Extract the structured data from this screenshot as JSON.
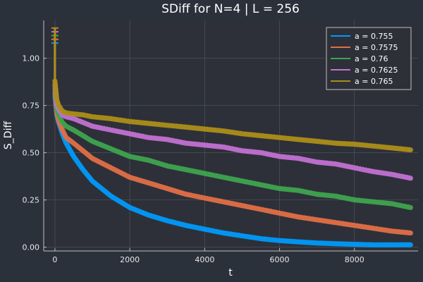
{
  "chart_data": {
    "type": "line",
    "title": "SDiff for N=4 | L = 256",
    "xlabel": "t",
    "ylabel": "S_Diff",
    "xlim": [
      -300,
      9700
    ],
    "ylim": [
      -0.02,
      1.2
    ],
    "xticks": [
      0,
      2000,
      4000,
      6000,
      8000
    ],
    "xtick_labels": [
      "0",
      "2000",
      "4000",
      "6000",
      "8000"
    ],
    "yticks": [
      0.0,
      0.25,
      0.5,
      0.75,
      1.0
    ],
    "ytick_labels": [
      "0.00",
      "0.25",
      "0.50",
      "0.75",
      "1.00"
    ],
    "grid": true,
    "legend_position": "top-right",
    "background": "#2b313b",
    "plot_background": "#2d3039",
    "x": [
      0,
      50,
      100,
      200,
      300,
      500,
      750,
      1000,
      1500,
      2000,
      2500,
      3000,
      3500,
      4000,
      4500,
      5000,
      5500,
      6000,
      6500,
      7000,
      7500,
      8000,
      8500,
      9000,
      9500
    ],
    "series": [
      {
        "name": "a = 0.755",
        "color": "#009af9",
        "values": [
          0.8,
          0.7,
          0.66,
          0.6,
          0.55,
          0.48,
          0.41,
          0.35,
          0.27,
          0.21,
          0.17,
          0.14,
          0.115,
          0.095,
          0.075,
          0.06,
          0.045,
          0.035,
          0.028,
          0.022,
          0.018,
          0.015,
          0.012,
          0.012,
          0.013
        ]
      },
      {
        "name": "a = 0.7575",
        "color": "#e26f46",
        "values": [
          0.82,
          0.71,
          0.67,
          0.62,
          0.58,
          0.55,
          0.51,
          0.47,
          0.42,
          0.37,
          0.34,
          0.31,
          0.28,
          0.26,
          0.24,
          0.22,
          0.2,
          0.18,
          0.16,
          0.145,
          0.13,
          0.115,
          0.1,
          0.085,
          0.075
        ]
      },
      {
        "name": "a = 0.76",
        "color": "#3ea44e",
        "values": [
          0.84,
          0.73,
          0.7,
          0.66,
          0.64,
          0.62,
          0.59,
          0.56,
          0.52,
          0.48,
          0.46,
          0.43,
          0.41,
          0.39,
          0.37,
          0.35,
          0.33,
          0.31,
          0.3,
          0.28,
          0.27,
          0.25,
          0.24,
          0.23,
          0.21
        ]
      },
      {
        "name": "a = 0.7625",
        "color": "#c271d2",
        "values": [
          0.86,
          0.75,
          0.73,
          0.7,
          0.69,
          0.68,
          0.66,
          0.64,
          0.62,
          0.6,
          0.58,
          0.57,
          0.55,
          0.54,
          0.53,
          0.51,
          0.5,
          0.48,
          0.47,
          0.45,
          0.44,
          0.42,
          0.4,
          0.385,
          0.365
        ]
      },
      {
        "name": "a = 0.765",
        "color": "#ac8e18",
        "values": [
          0.88,
          0.78,
          0.75,
          0.72,
          0.71,
          0.705,
          0.7,
          0.69,
          0.68,
          0.665,
          0.655,
          0.645,
          0.635,
          0.625,
          0.615,
          0.6,
          0.59,
          0.58,
          0.57,
          0.56,
          0.55,
          0.545,
          0.535,
          0.525,
          0.515
        ]
      }
    ]
  }
}
